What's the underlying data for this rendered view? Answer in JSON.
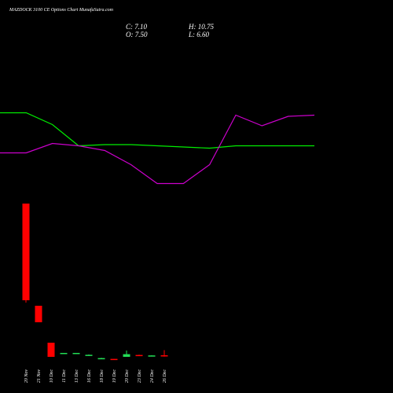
{
  "header": {
    "title": "MAZDOCK 3100  CE Options Chart MunafaSutra.com",
    "close": "C: 7.10",
    "high": "H: 10.75",
    "open": "O: 7.50",
    "low": "L: 6.60"
  },
  "chart_data": [
    {
      "type": "candlestick",
      "categories": [
        "20 Nov",
        "21 Nov",
        "10 Dec",
        "11 Dec",
        "13 Dec",
        "16 Dec",
        "18 Dec",
        "19 Dec",
        "20 Dec",
        "23 Dec",
        "24 Dec",
        "26 Dec"
      ],
      "open": [
        104,
        39,
        15.5,
        8.5,
        8.7,
        7.4,
        5.5,
        5.2,
        6.5,
        7.7,
        7.0,
        7.5
      ],
      "high": [
        104,
        39,
        15.5,
        9,
        9,
        8,
        5.9,
        5.2,
        10.5,
        7.9,
        7.5,
        10.75
      ],
      "low": [
        41,
        28.5,
        6.5,
        8.5,
        8.5,
        7.3,
        5.5,
        4.9,
        6.5,
        7.1,
        7.0,
        6.6
      ],
      "close": [
        42.5,
        28.5,
        6.5,
        9,
        9,
        7.8,
        5.7,
        4.9,
        8.2,
        7.3,
        7.4,
        7.1
      ],
      "up_color": "#22dd55",
      "down_color": "#ff0000",
      "ylim": [
        0,
        110
      ]
    },
    {
      "type": "line",
      "categories": [
        null,
        null,
        null,
        null,
        null,
        null,
        null,
        null,
        null,
        null,
        null,
        null,
        null
      ],
      "series": [
        {
          "color": "#00ee00",
          "values": [
            71,
            71,
            61,
            43,
            44,
            44,
            43,
            42,
            41,
            43,
            43,
            43,
            43
          ]
        },
        {
          "color": "#cc00cc",
          "values": [
            37,
            37,
            45,
            43,
            39,
            27,
            11,
            11,
            27,
            69,
            60,
            68,
            69
          ]
        }
      ],
      "ylim": [
        0,
        100
      ]
    }
  ]
}
